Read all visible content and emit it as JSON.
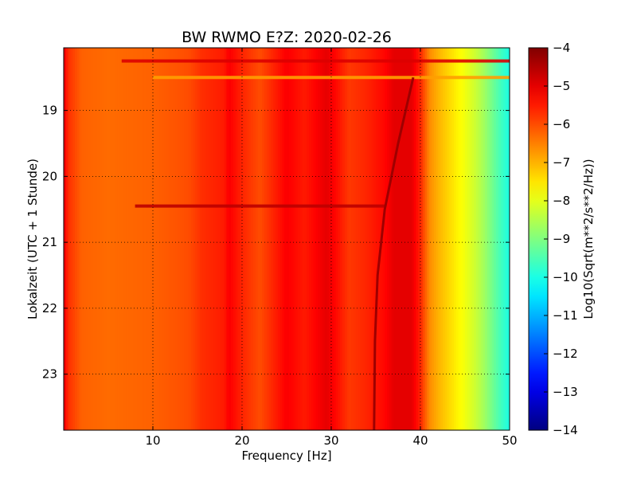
{
  "chart_data": {
    "type": "heatmap",
    "title": "BW RWMO E?Z: 2020-02-26",
    "xlabel": "Frequency [Hz]",
    "ylabel": "Lokalzeit (UTC + 1 Stunde)",
    "xlim": [
      0,
      50
    ],
    "ylim": [
      18.05,
      23.85
    ],
    "y_inverted": true,
    "grid": true,
    "x_ticks": [
      10,
      20,
      30,
      40,
      50
    ],
    "x_tick_labels": [
      "10",
      "20",
      "30",
      "40",
      "50"
    ],
    "y_ticks": [
      19,
      20,
      21,
      22,
      23
    ],
    "y_tick_labels": [
      "19",
      "20",
      "21",
      "22",
      "23"
    ],
    "colorbar": {
      "label": "Log10(Sqrt(m**2/s**2/Hz))",
      "range": [
        -14,
        -4
      ],
      "ticks": [
        -4,
        -5,
        -6,
        -7,
        -8,
        -9,
        -10,
        -11,
        -12,
        -13,
        -14
      ],
      "tick_labels": [
        "−4",
        "−5",
        "−6",
        "−7",
        "−8",
        "−9",
        "−10",
        "−11",
        "−12",
        "−13",
        "−14"
      ],
      "colormap": "jet"
    },
    "frequency_profile": {
      "freq_hz": [
        0,
        0.5,
        2,
        5,
        10,
        14,
        15.5,
        18,
        18.5,
        20,
        22,
        25,
        27,
        29.5,
        32,
        34,
        36,
        37,
        39,
        40,
        41,
        42,
        43,
        44,
        45,
        46,
        47,
        48,
        49,
        50
      ],
      "log10_value": [
        -5.0,
        -5.7,
        -6.2,
        -6.3,
        -6.2,
        -6.0,
        -5.7,
        -5.5,
        -5.2,
        -5.6,
        -6.0,
        -5.2,
        -5.5,
        -5.0,
        -5.8,
        -5.6,
        -5.3,
        -5.0,
        -5.0,
        -5.6,
        -6.6,
        -7.0,
        -7.3,
        -7.6,
        -7.9,
        -8.2,
        -8.6,
        -9.1,
        -9.6,
        -10.0
      ]
    },
    "features": [
      {
        "kind": "horizontal_band",
        "time": 18.25,
        "freq_range": [
          6.5,
          50
        ],
        "log10_value": -4.9
      },
      {
        "kind": "horizontal_band",
        "time": 18.5,
        "freq_range": [
          10,
          50
        ],
        "log10_value": -6.8
      },
      {
        "kind": "horizontal_band",
        "time": 20.45,
        "freq_range": [
          8,
          36
        ],
        "log10_value": -4.6
      },
      {
        "kind": "drifting_line",
        "points": [
          [
            39.2,
            18.5
          ],
          [
            37.5,
            19.5
          ],
          [
            36.0,
            20.5
          ],
          [
            35.2,
            21.5
          ],
          [
            34.9,
            22.5
          ],
          [
            34.8,
            23.85
          ]
        ],
        "log10_value": -4.3
      }
    ]
  }
}
